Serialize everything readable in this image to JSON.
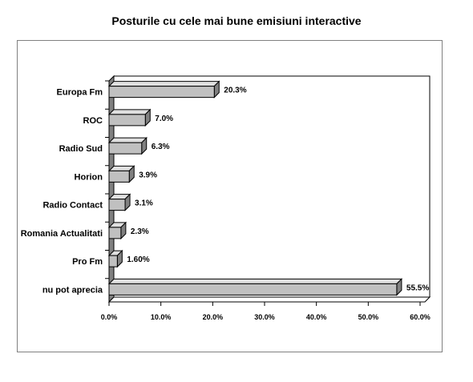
{
  "chart_data": {
    "type": "bar",
    "orientation": "horizontal",
    "title": "Posturile cu cele mai bune emisiuni interactive",
    "categories": [
      "Europa Fm",
      "ROC",
      "Radio Sud",
      "Horion",
      "Radio Contact",
      "Romania Actualitati",
      "Pro Fm",
      "nu pot aprecia"
    ],
    "values": [
      20.3,
      7.0,
      6.3,
      3.9,
      3.1,
      2.3,
      1.6,
      55.5
    ],
    "value_labels": [
      "20.3%",
      "7.0%",
      "6.3%",
      "3.9%",
      "3.1%",
      "2.3%",
      "1.60%",
      "55.5%"
    ],
    "xlim": [
      0,
      60
    ],
    "x_ticks": [
      0,
      10,
      20,
      30,
      40,
      50,
      60
    ],
    "x_tick_labels": [
      "0.0%",
      "10.0%",
      "20.0%",
      "30.0%",
      "40.0%",
      "50.0%",
      "60.0%"
    ],
    "grid": false,
    "legend": "none",
    "colors": {
      "bar_face": "#c0c0c0",
      "bar_top": "#e0e0e0",
      "bar_side": "#808080",
      "wall": "#808080"
    }
  }
}
